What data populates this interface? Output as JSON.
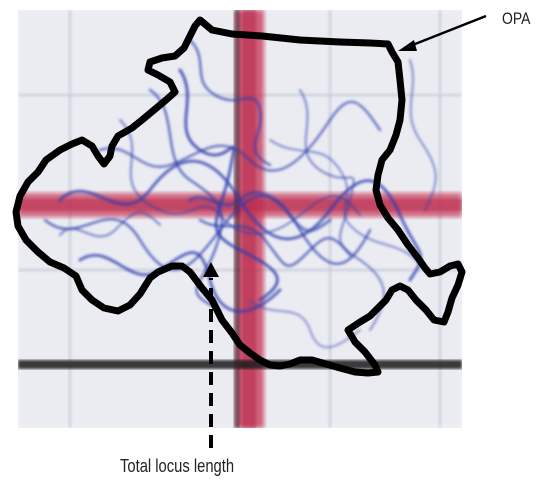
{
  "labels": {
    "opa": "OPA",
    "total_locus_length": "Total locus length"
  },
  "colors": {
    "outline": "#000000",
    "trace": "#2f3fae",
    "axis_red": "#c83a5a",
    "axis_black": "#1a1a1a"
  }
}
